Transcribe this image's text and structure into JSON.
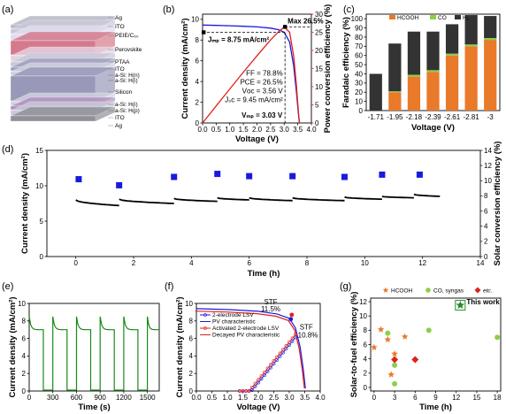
{
  "colors": {
    "black": "#000000",
    "red": "#e0201e",
    "blue": "#1a1adc",
    "orange": "#e87a2a",
    "green": "#8ccf4a",
    "dark": "#333333",
    "darkgreen": "#2a8a2a",
    "navy": "#1a1a7a"
  },
  "chart_data": [
    {
      "panel": "(a)",
      "type": "other",
      "layer_labels": [
        "Ag",
        "ITO",
        "PEIE/C₆₀",
        "Perovskite",
        "PTAA",
        "ITO",
        "a-Si: H(n)",
        "a-Si: H(i)",
        "Silicon",
        "a-Si: H(i)",
        "a-Si: H(p)",
        "ITO",
        "Ag"
      ]
    },
    {
      "panel": "(b)",
      "type": "line",
      "xlabel": "Voltage (V)",
      "ylabel": "Current density (mA/cm²)",
      "y2label": "Power conversion efficiency (%)",
      "xlim": [
        0,
        4.0
      ],
      "ylim": [
        0,
        10.5
      ],
      "y2lim": [
        0,
        30
      ],
      "xticks": [
        "0.0",
        "0.5",
        "1.0",
        "1.5",
        "2.0",
        "2.5",
        "3.0",
        "3.5",
        "4.0"
      ],
      "yticks": [
        "0",
        "2",
        "4",
        "6",
        "8",
        "10"
      ],
      "y2ticks": [
        "0",
        "5",
        "10",
        "15",
        "20",
        "25",
        "30"
      ],
      "series": [
        {
          "axis": "left",
          "color": "blue",
          "x": [
            0,
            0.5,
            1.0,
            1.5,
            2.0,
            2.5,
            2.8,
            3.0,
            3.2,
            3.35,
            3.45,
            3.52,
            3.56
          ],
          "y": [
            9.45,
            9.42,
            9.38,
            9.33,
            9.27,
            9.15,
            9.0,
            8.75,
            7.8,
            5.5,
            3.0,
            1.0,
            0
          ]
        },
        {
          "axis": "right",
          "color": "red",
          "x": [
            0,
            0.5,
            1.0,
            1.5,
            2.0,
            2.5,
            2.8,
            3.0,
            3.2,
            3.35,
            3.45,
            3.52,
            3.56
          ],
          "y": [
            0,
            4.7,
            9.4,
            14.0,
            18.5,
            22.9,
            25.2,
            26.5,
            25.0,
            18.4,
            10.3,
            3.5,
            0
          ]
        }
      ],
      "annotations": {
        "max": "Max 26.5%",
        "jmp": "Jₘₚ = 8.75 mA/cm²",
        "ff": "FF = 78.8%",
        "pce": "PCE = 26.5%",
        "voc": "Vᴏᴄ = 3.56 V",
        "jsc": "Jₛᴄ = 9.45 mA/cm²",
        "vmp": "Vₘₚ = 3.03 V"
      }
    },
    {
      "panel": "(c)",
      "type": "bar",
      "xlabel": "Voltage (V)",
      "ylabel": "Faradaic efficiency (%)",
      "ylim": [
        0,
        105
      ],
      "yticks": [
        "0",
        "10",
        "20",
        "30",
        "40",
        "50",
        "60",
        "70",
        "80",
        "90",
        "100"
      ],
      "categories": [
        "-1.71",
        "-1.95",
        "-2.18",
        "-2.39",
        "-2.61",
        "-2.81",
        "-3"
      ],
      "legend": [
        "HCOOH",
        "CO",
        "H₂"
      ],
      "series": [
        {
          "name": "HCOOH",
          "color": "orange",
          "values": [
            0,
            20,
            37,
            42,
            60,
            70,
            77
          ]
        },
        {
          "name": "CO",
          "color": "green",
          "values": [
            0,
            1,
            2,
            2,
            2,
            2,
            2
          ]
        },
        {
          "name": "H₂",
          "color": "dark",
          "values": [
            40,
            52,
            47,
            42,
            32,
            32,
            24
          ]
        }
      ]
    },
    {
      "panel": "(d)",
      "type": "line",
      "xlabel": "Time (h)",
      "ylabel": "Current density (mA/cm²)",
      "y2label": "Solar conversion efficiency (%)",
      "xlim": [
        -1,
        14
      ],
      "ylim": [
        0,
        15
      ],
      "y2lim": [
        0,
        14
      ],
      "xticks": [
        "0",
        "2",
        "4",
        "6",
        "8",
        "10",
        "12",
        "14"
      ],
      "yticks": [
        "0",
        "5",
        "10",
        "15"
      ],
      "y2ticks": [
        "0",
        "2",
        "4",
        "6",
        "8",
        "10",
        "12",
        "14"
      ],
      "current_segments": [
        {
          "start": 0.0,
          "end": 1.5,
          "y0": 8.0,
          "y1": 7.2
        },
        {
          "start": 1.5,
          "end": 3.4,
          "y0": 8.1,
          "y1": 7.5
        },
        {
          "start": 3.4,
          "end": 4.9,
          "y0": 8.2,
          "y1": 7.8
        },
        {
          "start": 4.9,
          "end": 6.0,
          "y0": 8.3,
          "y1": 8.0
        },
        {
          "start": 6.0,
          "end": 7.5,
          "y0": 8.3,
          "y1": 7.9
        },
        {
          "start": 7.5,
          "end": 9.3,
          "y0": 8.3,
          "y1": 7.9
        },
        {
          "start": 9.3,
          "end": 10.6,
          "y0": 8.4,
          "y1": 8.1
        },
        {
          "start": 10.6,
          "end": 11.7,
          "y0": 8.5,
          "y1": 8.3
        },
        {
          "start": 11.7,
          "end": 12.6,
          "y0": 8.8,
          "y1": 8.5
        }
      ],
      "efficiency_points": {
        "color": "blue",
        "x": [
          0.1,
          1.5,
          3.4,
          4.9,
          6.0,
          7.5,
          9.3,
          10.6,
          11.9
        ],
        "y": [
          10.2,
          9.4,
          10.5,
          10.9,
          10.6,
          10.6,
          10.5,
          10.8,
          10.8
        ]
      }
    },
    {
      "panel": "(e)",
      "type": "line",
      "xlabel": "Time (s)",
      "ylabel": "Current density (mA/cm²)",
      "xlim": [
        0,
        1650
      ],
      "ylim": [
        0,
        10
      ],
      "xticks": [
        "0",
        "300",
        "600",
        "900",
        "1200",
        "1500"
      ],
      "yticks": [
        "0",
        "2",
        "4",
        "6",
        "8",
        "10"
      ],
      "on_periods": [
        [
          0,
          180
        ],
        [
          300,
          480
        ],
        [
          600,
          780
        ],
        [
          900,
          1080
        ],
        [
          1200,
          1380
        ],
        [
          1500,
          1650
        ]
      ],
      "on_value": 7.0,
      "peak_value": 8.5,
      "off_value": 0.1
    },
    {
      "panel": "(f)",
      "type": "line",
      "xlabel": "Voltage (V)",
      "ylabel": "Current density (mA/cm²)",
      "xlim": [
        0,
        4.0
      ],
      "ylim": [
        0,
        10
      ],
      "xticks": [
        "0.0",
        "0.5",
        "1.0",
        "1.5",
        "2.0",
        "2.5",
        "3.0",
        "3.5",
        "4.0"
      ],
      "yticks": [
        "0",
        "2",
        "4",
        "6",
        "8",
        "10"
      ],
      "legend": [
        "2-electrode LSV",
        "PV characteristic",
        "Activated 2-electrode LSV",
        "Decayed PV characteristic"
      ],
      "stf_labels": [
        "STF",
        "11.5%",
        "STF",
        "10.8%"
      ]
    },
    {
      "panel": "(g)",
      "type": "scatter",
      "xlabel": "Time (h)",
      "ylabel": "Solar-to-fuel efficiency (%)",
      "xlim": [
        -0.5,
        18.5
      ],
      "ylim": [
        -0.5,
        12.5
      ],
      "xticks": [
        "0",
        "3",
        "6",
        "9",
        "12",
        "15",
        "18"
      ],
      "yticks": [
        "0",
        "2",
        "4",
        "6",
        "8",
        "10",
        "12"
      ],
      "legend": [
        "HCOOH",
        "CO, syngas",
        "etc."
      ],
      "this_work": "This work",
      "series": [
        {
          "name": "HCOOH",
          "marker": "star",
          "color": "orange",
          "x": [
            0.0,
            1.0,
            2.0,
            2.5,
            3.0,
            4.5
          ],
          "y": [
            5.6,
            8.1,
            6.7,
            1.8,
            4.7,
            7.1
          ]
        },
        {
          "name": "CO, syngas",
          "marker": "circle",
          "color": "green",
          "x": [
            2.0,
            3.0,
            3.0,
            8.0,
            18.0
          ],
          "y": [
            7.6,
            3.1,
            0.5,
            8.0,
            7.0
          ]
        },
        {
          "name": "etc.",
          "marker": "diamond",
          "color": "red",
          "x": [
            3.0,
            6.0
          ],
          "y": [
            3.9,
            3.9
          ]
        },
        {
          "name": "This work",
          "marker": "star",
          "color": "darkgreen",
          "x": [
            12.6
          ],
          "y": [
            11.5
          ]
        }
      ]
    }
  ]
}
